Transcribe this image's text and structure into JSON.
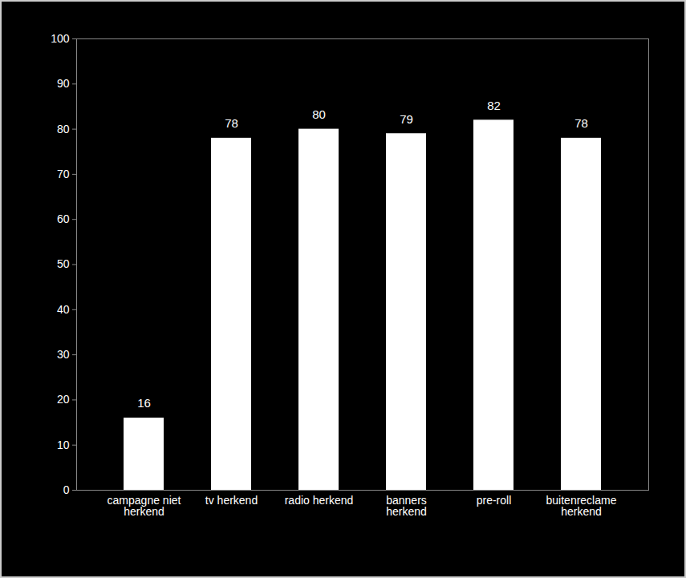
{
  "chart_data": {
    "type": "bar",
    "categories": [
      "campagne niet herkend",
      "tv herkend",
      "radio herkend",
      "banners herkend",
      "pre-roll",
      "buitenreclame herkend"
    ],
    "values": [
      16,
      78,
      80,
      79,
      82,
      78
    ],
    "color": "#ffffff",
    "ylim": [
      0,
      100
    ],
    "yticks": [
      0,
      10,
      20,
      30,
      40,
      50,
      60,
      70,
      80,
      90,
      100
    ],
    "grid": false,
    "data_labels": true
  }
}
